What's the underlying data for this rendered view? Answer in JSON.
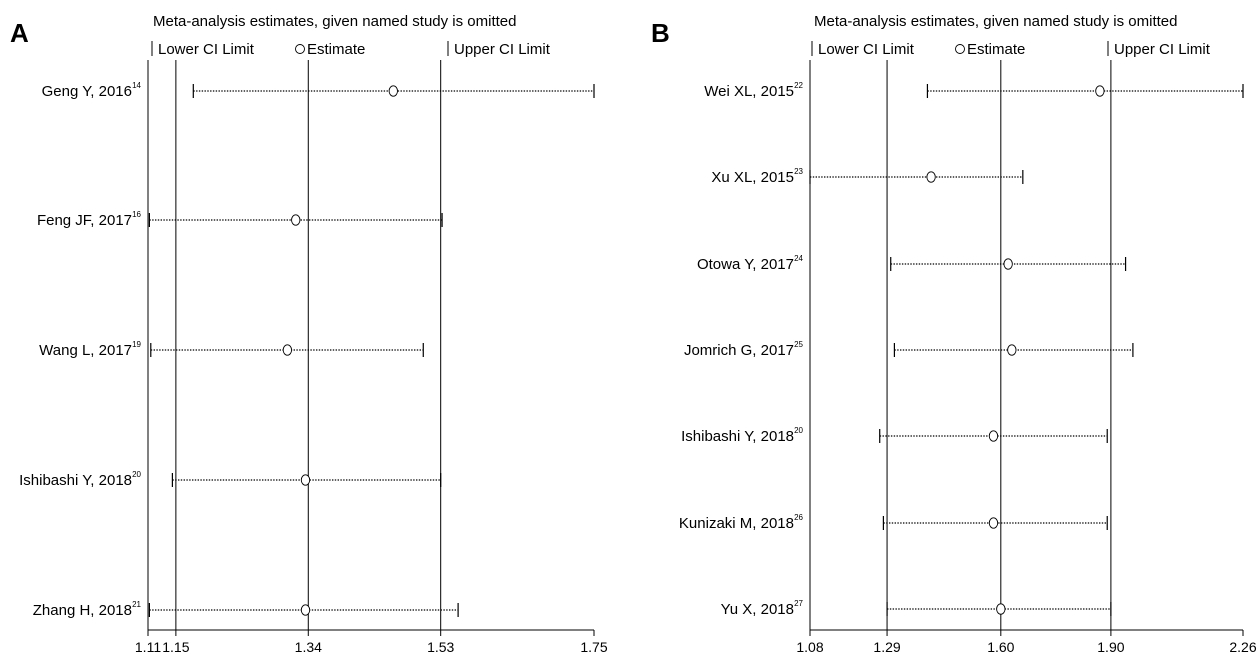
{
  "chart_data": [
    {
      "type": "forest",
      "panel": "A",
      "title": "Meta-analysis estimates, given named study is omitted",
      "legend": {
        "lower": "Lower CI Limit",
        "estimate": "Estimate",
        "upper": "Upper CI Limit"
      },
      "xlim": [
        1.11,
        1.75
      ],
      "ticks": [
        1.11,
        1.15,
        1.34,
        1.53,
        1.75
      ],
      "tick_labels": [
        "1.11",
        "1.15",
        "1.34",
        "1.53",
        "1.75"
      ],
      "reference_lines": [
        1.15,
        1.34,
        1.53
      ],
      "studies": [
        {
          "name": "Geng Y, 2016",
          "ref": "14",
          "lower": 1.175,
          "estimate": 1.462,
          "upper": 1.75
        },
        {
          "name": "Feng JF, 2017",
          "ref": "16",
          "lower": 1.112,
          "estimate": 1.322,
          "upper": 1.532
        },
        {
          "name": "Wang L, 2017",
          "ref": "19",
          "lower": 1.114,
          "estimate": 1.31,
          "upper": 1.505
        },
        {
          "name": "Ishibashi Y, 2018",
          "ref": "20",
          "lower": 1.145,
          "estimate": 1.336,
          "upper": 1.53
        },
        {
          "name": "Zhang H, 2018",
          "ref": "21",
          "lower": 1.112,
          "estimate": 1.336,
          "upper": 1.555
        }
      ]
    },
    {
      "type": "forest",
      "panel": "B",
      "title": "Meta-analysis estimates, given named study is omitted",
      "legend": {
        "lower": "Lower CI Limit",
        "estimate": "Estimate",
        "upper": "Upper CI Limit"
      },
      "xlim": [
        1.08,
        2.26
      ],
      "ticks": [
        1.08,
        1.29,
        1.6,
        1.9,
        2.26
      ],
      "tick_labels": [
        "1.08",
        "1.29",
        "1.60",
        "1.90",
        "2.26"
      ],
      "reference_lines": [
        1.29,
        1.6,
        1.9
      ],
      "studies": [
        {
          "name": "Wei XL, 2015",
          "ref": "22",
          "lower": 1.4,
          "estimate": 1.87,
          "upper": 2.26
        },
        {
          "name": "Xu XL, 2015",
          "ref": "23",
          "lower": 1.08,
          "estimate": 1.41,
          "upper": 1.66
        },
        {
          "name": "Otowa Y, 2017",
          "ref": "24",
          "lower": 1.3,
          "estimate": 1.62,
          "upper": 1.94
        },
        {
          "name": "Jomrich G, 2017",
          "ref": "25",
          "lower": 1.31,
          "estimate": 1.63,
          "upper": 1.96
        },
        {
          "name": "Ishibashi Y, 2018",
          "ref": "20",
          "lower": 1.27,
          "estimate": 1.58,
          "upper": 1.89
        },
        {
          "name": "Kunizaki M, 2018",
          "ref": "26",
          "lower": 1.28,
          "estimate": 1.58,
          "upper": 1.89
        },
        {
          "name": "Yu X, 2018",
          "ref": "27",
          "lower": 1.29,
          "estimate": 1.6,
          "upper": 1.9
        }
      ]
    }
  ]
}
